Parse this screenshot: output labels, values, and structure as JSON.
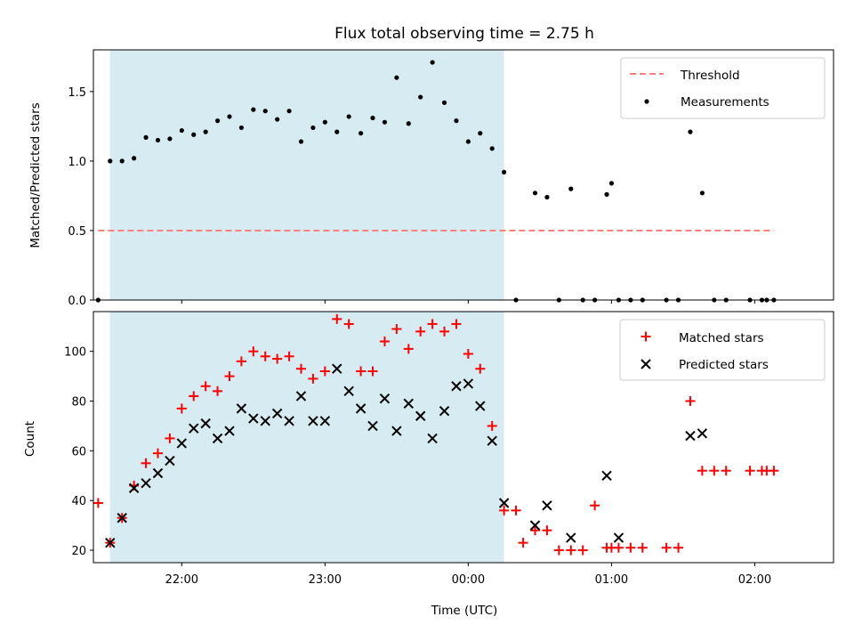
{
  "title": "Flux total observing time = 2.75 h",
  "colors": {
    "shade": "#add8e6",
    "threshold": "#ff7f7f",
    "measurement": "#000000",
    "matched": "#ff0000",
    "predicted": "#000000"
  },
  "chart_data": [
    {
      "type": "scatter",
      "panel": "top",
      "ylabel": "Matched/Predicted stars",
      "xlim": [
        "21:23",
        "02:33"
      ],
      "ylim": [
        0,
        1.8
      ],
      "yticks": [
        "0.0",
        "0.5",
        "1.0",
        "1.5"
      ],
      "legend_position": "top-right",
      "shaded_interval": [
        "21:30",
        "00:15"
      ],
      "threshold": {
        "name": "Threshold",
        "y": 0.5,
        "x_range": [
          "21:25",
          "02:08"
        ],
        "style": "dashed"
      },
      "series": [
        {
          "name": "Measurements",
          "marker": "dot",
          "x": [
            "21:25",
            "21:30",
            "21:35",
            "21:40",
            "21:45",
            "21:50",
            "21:55",
            "22:00",
            "22:05",
            "22:10",
            "22:15",
            "22:20",
            "22:25",
            "22:30",
            "22:35",
            "22:40",
            "22:45",
            "22:50",
            "22:55",
            "23:00",
            "23:05",
            "23:10",
            "23:15",
            "23:20",
            "23:25",
            "23:30",
            "23:35",
            "23:40",
            "23:45",
            "23:50",
            "23:55",
            "00:00",
            "00:05",
            "00:10",
            "00:15",
            "00:20",
            "00:28",
            "00:33",
            "00:38",
            "00:43",
            "00:48",
            "00:53",
            "00:58",
            "01:00",
            "01:03",
            "01:08",
            "01:13",
            "01:23",
            "01:28",
            "01:33",
            "01:38",
            "01:43",
            "01:48",
            "01:58",
            "02:03",
            "02:05",
            "02:08"
          ],
          "y": [
            0.0,
            1.0,
            1.0,
            1.02,
            1.17,
            1.15,
            1.16,
            1.22,
            1.19,
            1.21,
            1.29,
            1.32,
            1.24,
            1.37,
            1.36,
            1.3,
            1.36,
            1.14,
            1.24,
            1.28,
            1.21,
            1.32,
            1.2,
            1.31,
            1.28,
            1.6,
            1.27,
            1.46,
            1.71,
            1.42,
            1.29,
            1.14,
            1.2,
            1.09,
            0.92,
            0.0,
            0.77,
            0.74,
            0.0,
            0.8,
            0.0,
            0.0,
            0.76,
            0.84,
            0.0,
            0.0,
            0.0,
            0.0,
            0.0,
            1.21,
            0.77,
            0.0,
            0.0,
            0.0,
            0.0,
            0.0,
            0.0
          ]
        }
      ]
    },
    {
      "type": "scatter",
      "panel": "bottom",
      "xlabel": "Time (UTC)",
      "ylabel": "Count",
      "xlim": [
        "21:23",
        "02:33"
      ],
      "ylim": [
        15,
        116
      ],
      "xticks": [
        "22:00",
        "23:00",
        "00:00",
        "01:00",
        "02:00"
      ],
      "yticks": [
        "20",
        "40",
        "60",
        "80",
        "100"
      ],
      "legend_position": "top-right",
      "shaded_interval": [
        "21:30",
        "00:15"
      ],
      "series": [
        {
          "name": "Matched stars",
          "marker": "plus",
          "x": [
            "21:25",
            "21:30",
            "21:35",
            "21:40",
            "21:45",
            "21:50",
            "21:55",
            "22:00",
            "22:05",
            "22:10",
            "22:15",
            "22:20",
            "22:25",
            "22:30",
            "22:35",
            "22:40",
            "22:45",
            "22:50",
            "22:55",
            "23:00",
            "23:05",
            "23:10",
            "23:15",
            "23:20",
            "23:25",
            "23:30",
            "23:35",
            "23:40",
            "23:45",
            "23:50",
            "23:55",
            "00:00",
            "00:05",
            "00:10",
            "00:15",
            "00:20",
            "00:23",
            "00:28",
            "00:33",
            "00:38",
            "00:43",
            "00:48",
            "00:53",
            "00:58",
            "01:00",
            "01:03",
            "01:08",
            "01:13",
            "01:23",
            "01:28",
            "01:33",
            "01:38",
            "01:43",
            "01:48",
            "01:58",
            "02:03",
            "02:05",
            "02:08"
          ],
          "y": [
            39,
            23,
            33,
            46,
            55,
            59,
            65,
            77,
            82,
            86,
            84,
            90,
            96,
            100,
            98,
            97,
            98,
            93,
            89,
            92,
            113,
            111,
            92,
            92,
            104,
            109,
            101,
            108,
            111,
            108,
            111,
            99,
            93,
            70,
            36,
            36,
            23,
            28,
            28,
            20,
            20,
            20,
            38,
            21,
            21,
            21,
            21,
            21,
            21,
            21,
            80,
            52,
            52,
            52,
            52,
            52,
            52,
            52
          ]
        },
        {
          "name": "Predicted stars",
          "marker": "x",
          "x": [
            "21:30",
            "21:35",
            "21:40",
            "21:45",
            "21:50",
            "21:55",
            "22:00",
            "22:05",
            "22:10",
            "22:15",
            "22:20",
            "22:25",
            "22:30",
            "22:35",
            "22:40",
            "22:45",
            "22:50",
            "22:55",
            "23:00",
            "23:05",
            "23:10",
            "23:15",
            "23:20",
            "23:25",
            "23:30",
            "23:35",
            "23:40",
            "23:45",
            "23:50",
            "23:55",
            "00:00",
            "00:05",
            "00:10",
            "00:15",
            "00:28",
            "00:33",
            "00:43",
            "00:58",
            "01:03",
            "01:33",
            "01:38"
          ],
          "y": [
            23,
            33,
            45,
            47,
            51,
            56,
            63,
            69,
            71,
            65,
            68,
            77,
            73,
            72,
            75,
            72,
            82,
            72,
            72,
            93,
            84,
            77,
            70,
            81,
            68,
            79,
            74,
            65,
            76,
            86,
            87,
            78,
            64,
            39,
            30,
            38,
            25,
            50,
            25,
            66,
            67
          ]
        }
      ]
    }
  ]
}
